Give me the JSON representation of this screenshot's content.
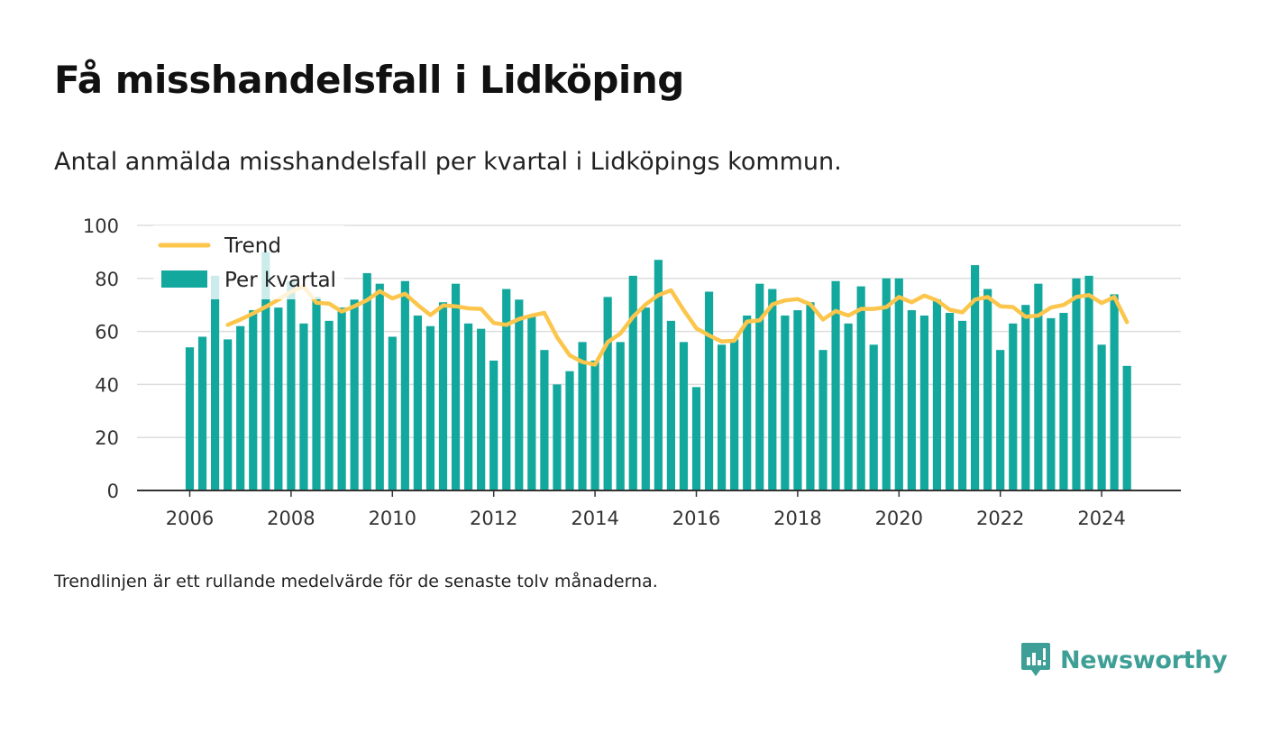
{
  "header": {
    "title": "Få misshandelsfall i Lidköping",
    "subtitle": "Antal anmälda misshandelsfall per kvartal i Lidköpings kommun."
  },
  "footer": {
    "note": "Trendlinjen är ett rullande medelvärde för de senaste tolv månaderna.",
    "brand": "Newsworthy"
  },
  "colors": {
    "bar": "#13a89e",
    "trend": "#fcc54b",
    "grid": "#dddddd",
    "axis": "#333333",
    "brand": "#3d9f96"
  },
  "chart_data": {
    "type": "bar",
    "title": "Få misshandelsfall i Lidköping",
    "xlabel": "",
    "ylabel": "",
    "ylim": [
      0,
      100
    ],
    "yticks": [
      0,
      20,
      40,
      60,
      80,
      100
    ],
    "xticks": [
      "2006",
      "2008",
      "2010",
      "2012",
      "2014",
      "2016",
      "2018",
      "2020",
      "2022",
      "2024"
    ],
    "grid": true,
    "legend_position": "top-left",
    "categories": [
      "2006 K1",
      "2006 K2",
      "2006 K3",
      "2006 K4",
      "2007 K1",
      "2007 K2",
      "2007 K3",
      "2007 K4",
      "2008 K1",
      "2008 K2",
      "2008 K3",
      "2008 K4",
      "2009 K1",
      "2009 K2",
      "2009 K3",
      "2009 K4",
      "2010 K1",
      "2010 K2",
      "2010 K3",
      "2010 K4",
      "2011 K1",
      "2011 K2",
      "2011 K3",
      "2011 K4",
      "2012 K1",
      "2012 K2",
      "2012 K3",
      "2012 K4",
      "2013 K1",
      "2013 K2",
      "2013 K3",
      "2013 K4",
      "2014 K1",
      "2014 K2",
      "2014 K3",
      "2014 K4",
      "2015 K1",
      "2015 K2",
      "2015 K3",
      "2015 K4",
      "2016 K1",
      "2016 K2",
      "2016 K3",
      "2016 K4",
      "2017 K1",
      "2017 K2",
      "2017 K3",
      "2017 K4",
      "2018 K1",
      "2018 K2",
      "2018 K3",
      "2018 K4",
      "2019 K1",
      "2019 K2",
      "2019 K3",
      "2019 K4",
      "2020 K1",
      "2020 K2",
      "2020 K3",
      "2020 K4",
      "2021 K1",
      "2021 K2",
      "2021 K3",
      "2021 K4",
      "2022 K1",
      "2022 K2",
      "2022 K3",
      "2022 K4",
      "2023 K1",
      "2023 K2",
      "2023 K3",
      "2023 K4",
      "2024 K1",
      "2024 K2",
      "2024 K3"
    ],
    "series": [
      {
        "name": "Per kvartal",
        "type": "bar",
        "values": [
          54,
          58,
          81,
          57,
          62,
          68,
          90,
          69,
          79,
          63,
          73,
          64,
          69,
          72,
          82,
          78,
          58,
          79,
          66,
          62,
          71,
          78,
          63,
          61,
          49,
          76,
          72,
          66,
          53,
          40,
          45,
          56,
          49,
          73,
          56,
          81,
          69,
          87,
          64,
          56,
          39,
          75,
          55,
          57,
          66,
          78,
          76,
          66,
          68,
          71,
          53,
          79,
          63,
          77,
          55,
          80,
          80,
          68,
          66,
          72,
          67,
          64,
          85,
          76,
          53,
          63,
          70,
          78,
          65,
          67,
          80,
          81,
          55,
          74,
          47
        ]
      },
      {
        "name": "Trend",
        "type": "line",
        "values": [
          null,
          null,
          null,
          62.5,
          64.5,
          66.8,
          69.3,
          72.0,
          75.0,
          77.0,
          70.8,
          70.5,
          67.5,
          69.5,
          71.8,
          75.2,
          72.5,
          74.2,
          70.0,
          66.2,
          69.8,
          69.5,
          68.7,
          68.5,
          63.2,
          62.5,
          64.7,
          66.0,
          67.0,
          57.8,
          51.0,
          48.5,
          47.5,
          56.0,
          59.2,
          65.5,
          70.2,
          73.7,
          75.5,
          68.0,
          61.2,
          58.5,
          56.2,
          56.5,
          63.7,
          64.2,
          70.2,
          71.7,
          72.2,
          70.2,
          64.5,
          67.7,
          66.0,
          68.5,
          68.5,
          69.2,
          73.0,
          71.0,
          73.5,
          71.7,
          68.2,
          67.2,
          72.0,
          73.0,
          69.5,
          69.2,
          65.5,
          66.0,
          69.0,
          70.0,
          73.0,
          73.7,
          70.7,
          73.0,
          63.5
        ]
      }
    ]
  }
}
